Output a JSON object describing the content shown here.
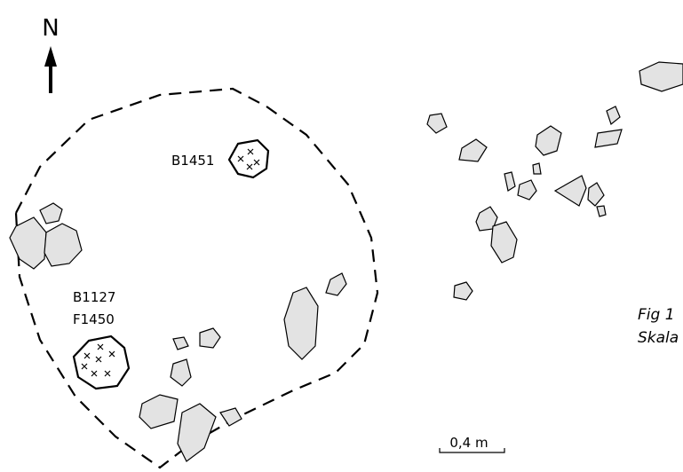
{
  "labels": {
    "north": "N",
    "feature_a": "B1451",
    "feature_b_line1": "B1127",
    "feature_b_line2": "F1450",
    "caption_line1": "Fig 1",
    "caption_line2": "Skala",
    "scale": "0,4 m"
  }
}
